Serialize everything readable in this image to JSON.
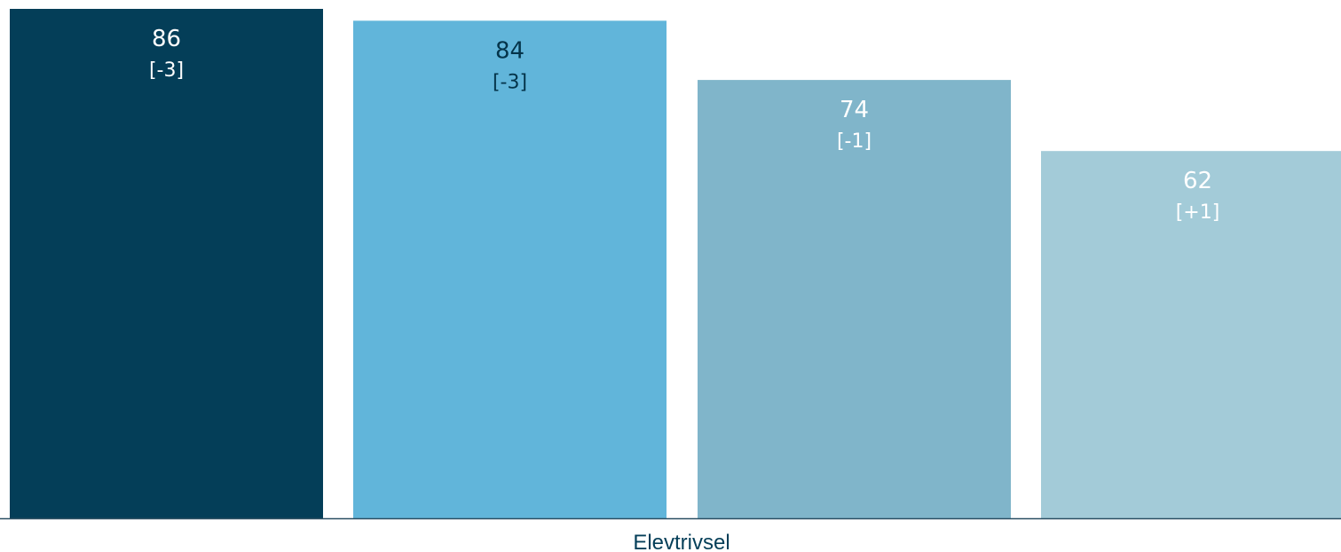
{
  "chart_data": {
    "type": "bar",
    "categories": [
      "Elevtrivsel"
    ],
    "bars": [
      {
        "value": 86,
        "change": "[-3]",
        "color": "#043e58",
        "label_color": "#ffffff"
      },
      {
        "value": 84,
        "change": "[-3]",
        "color": "#61b5da",
        "label_color": "#04344a"
      },
      {
        "value": 74,
        "change": "[-1]",
        "color": "#80b5ca",
        "label_color": "#ffffff"
      },
      {
        "value": 62,
        "change": "[+1]",
        "color": "#a3cbd8",
        "label_color": "#ffffff"
      }
    ],
    "ylim": [
      0,
      88
    ],
    "grid": false,
    "axis_color": "#2a4f63",
    "category_label_color": "#043e58"
  }
}
